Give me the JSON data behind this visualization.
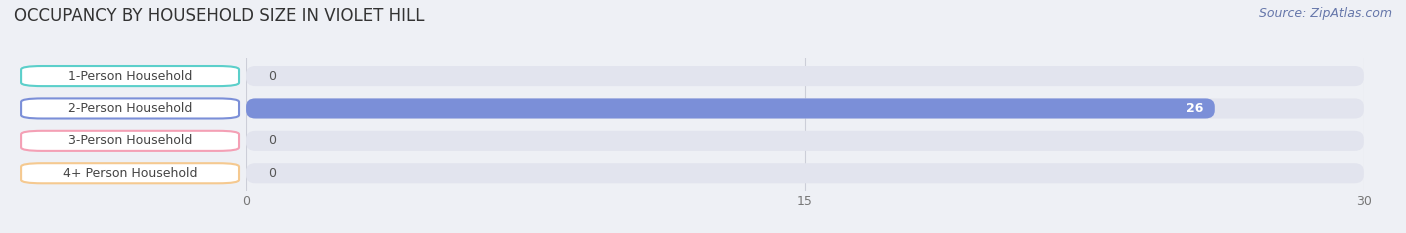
{
  "title": "OCCUPANCY BY HOUSEHOLD SIZE IN VIOLET HILL",
  "source": "Source: ZipAtlas.com",
  "categories": [
    "1-Person Household",
    "2-Person Household",
    "3-Person Household",
    "4+ Person Household"
  ],
  "values": [
    0,
    26,
    0,
    0
  ],
  "bar_colors": [
    "#5bcfca",
    "#7b8fd8",
    "#f4a0b5",
    "#f5c990"
  ],
  "xlim": [
    0,
    30
  ],
  "xticks": [
    0,
    15,
    30
  ],
  "background_color": "#eef0f5",
  "bar_bg_color": "#e2e4ee",
  "title_fontsize": 12,
  "source_fontsize": 9,
  "label_fontsize": 9,
  "value_fontsize": 9
}
